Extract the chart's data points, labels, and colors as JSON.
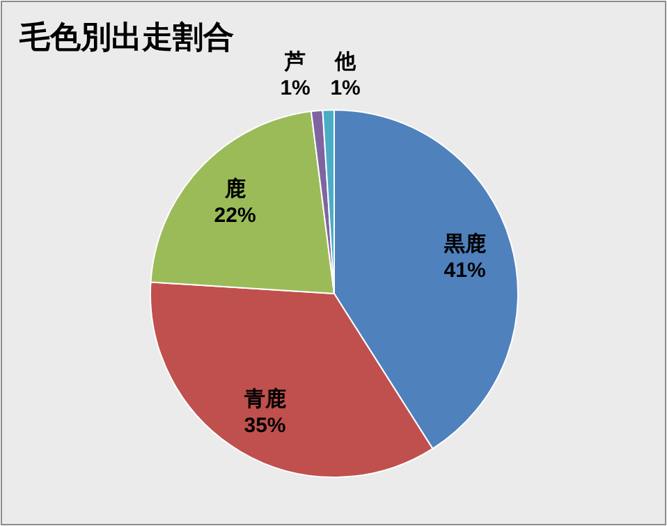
{
  "chart_data": {
    "type": "pie",
    "title": "毛色別出走割合",
    "categories": [
      "黒鹿",
      "青鹿",
      "鹿",
      "芦",
      "他"
    ],
    "values": [
      41,
      35,
      22,
      1,
      1
    ],
    "value_labels": [
      "41%",
      "35%",
      "22%",
      "1%",
      "1%"
    ],
    "colors": [
      "#4f81bd",
      "#c0504d",
      "#9bbb59",
      "#8064a2",
      "#4bacc6"
    ]
  }
}
